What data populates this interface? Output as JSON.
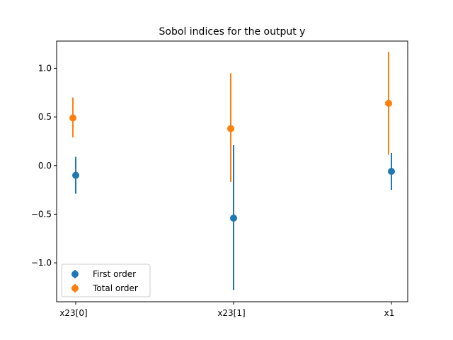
{
  "chart_data": {
    "type": "scatter",
    "title": "Sobol indices for the output y",
    "xlabel": "",
    "ylabel": "",
    "categories": [
      "x23[0]",
      "x23[1]",
      "x1"
    ],
    "ylim": [
      -1.4,
      1.28
    ],
    "yticks": [
      -1.0,
      -0.5,
      0.0,
      0.5,
      1.0
    ],
    "ytick_labels": [
      "−1.0",
      "−0.5",
      "0.0",
      "0.5",
      "1.0"
    ],
    "grid": false,
    "legend_position": "lower-left",
    "series": [
      {
        "name": "First order",
        "color": "#1f77b4",
        "values": [
          -0.1,
          -0.54,
          -0.06
        ],
        "err_low": [
          -0.29,
          -1.28,
          -0.25
        ],
        "err_high": [
          0.09,
          0.21,
          0.13
        ]
      },
      {
        "name": "Total order",
        "color": "#ff7f0e",
        "values": [
          0.49,
          0.38,
          0.64
        ],
        "err_low": [
          0.29,
          -0.17,
          0.11
        ],
        "err_high": [
          0.7,
          0.95,
          1.17
        ]
      }
    ]
  }
}
